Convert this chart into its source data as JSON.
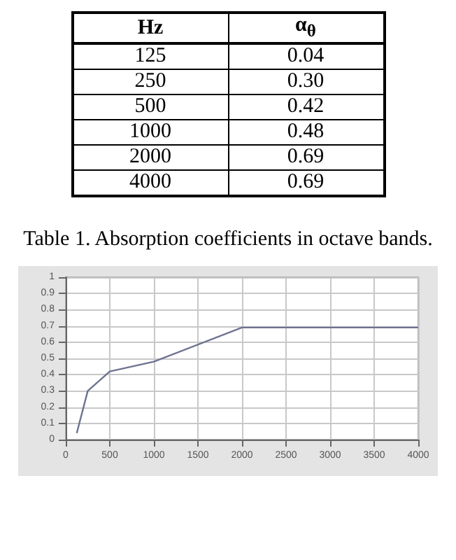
{
  "chart_data": [
    {
      "type": "other",
      "xlabel": "Hz",
      "ylabel": "α$_{θ}$",
      "annotations": [
        "Table 1. Absorption coefficients in octave bands."
      ],
      "categories": [
        "125",
        "250",
        "500",
        "1000",
        "2000",
        "4000"
      ],
      "value_labels": [
        "0.04",
        "0.30",
        "0.42",
        "0.48",
        "0.69",
        "0.69"
      ]
    },
    {
      "type": "line",
      "x": [
        125,
        250,
        500,
        1000,
        2000,
        4000
      ],
      "values": [
        0.04,
        0.3,
        0.42,
        0.48,
        0.69,
        0.69
      ],
      "color": "#6e7391",
      "xlim": [
        0,
        4000
      ],
      "xticks": [
        0,
        500,
        1000,
        1500,
        2000,
        2500,
        3000,
        3500,
        4000
      ],
      "ylim": [
        0,
        1
      ],
      "yticks": [
        0,
        0.1,
        0.2,
        0.3,
        0.4,
        0.5,
        0.6,
        0.7,
        0.8,
        0.9,
        1
      ],
      "grid": true,
      "marker": "none",
      "line_style": "solid"
    }
  ]
}
